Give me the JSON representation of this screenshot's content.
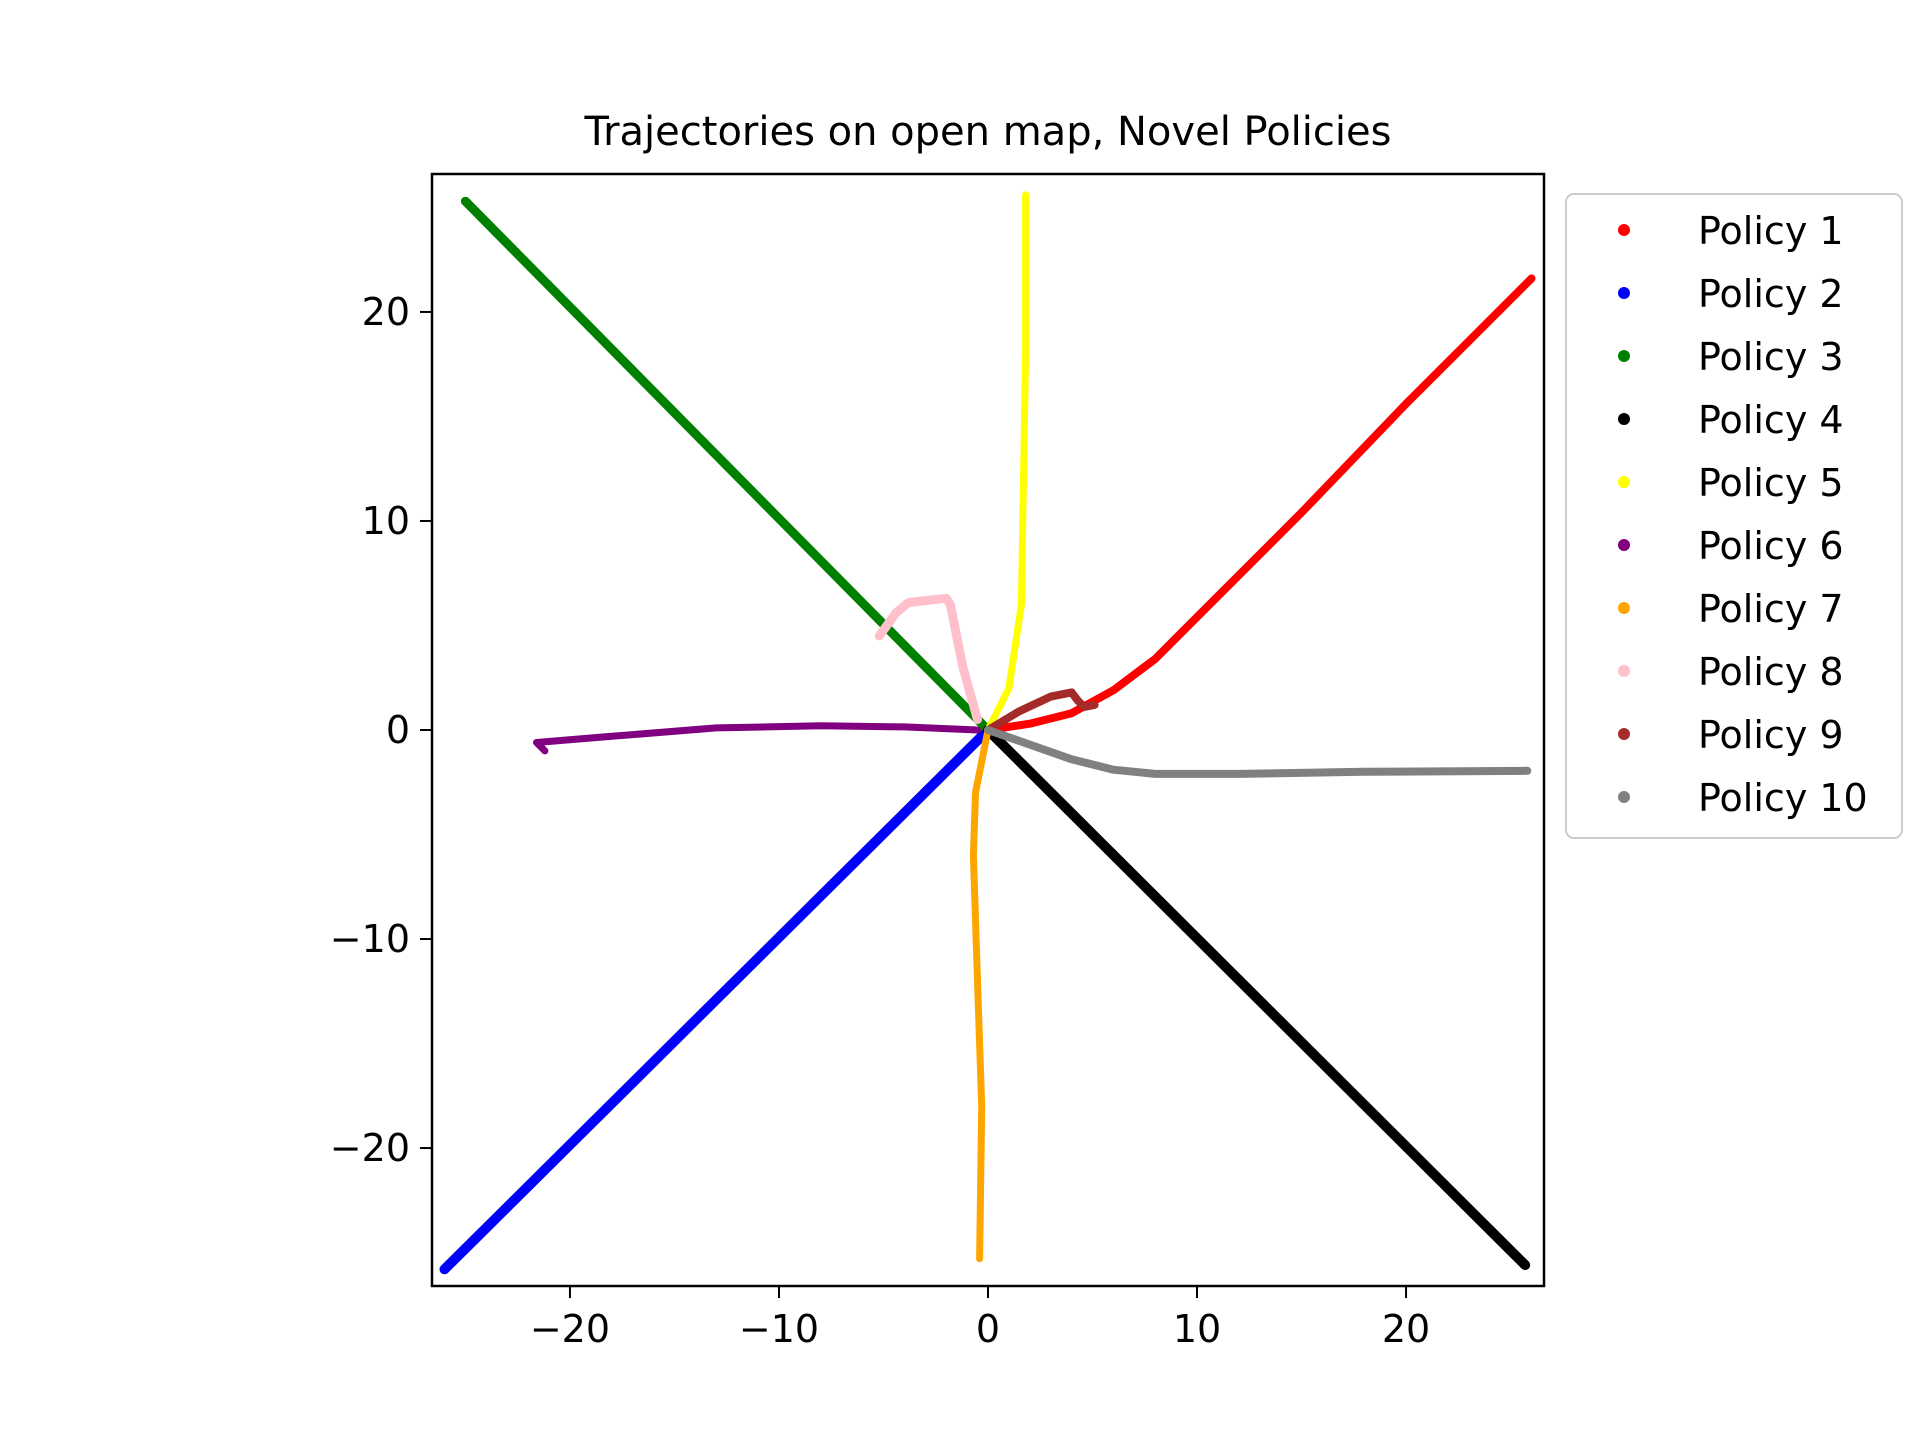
{
  "chart_data": {
    "type": "scatter",
    "title": "Trajectories on open map, Novel Policies",
    "xlabel": "",
    "ylabel": "",
    "xlim": [
      -26.6,
      26.6
    ],
    "ylim": [
      -26.6,
      26.6
    ],
    "xticks": [
      -20,
      -10,
      0,
      10,
      20
    ],
    "yticks": [
      -20,
      -10,
      0,
      10,
      20
    ],
    "xtick_labels": [
      "−20",
      "−10",
      "0",
      "10",
      "20"
    ],
    "ytick_labels": [
      "−20",
      "−10",
      "0",
      "10",
      "20"
    ],
    "grid": false,
    "legend_position": "outside-right-top",
    "series": [
      {
        "name": "Policy 1",
        "color": "#ff0000",
        "width": 8,
        "points": [
          [
            0,
            0
          ],
          [
            2,
            0.3
          ],
          [
            4,
            0.8
          ],
          [
            6,
            1.9
          ],
          [
            8,
            3.4
          ],
          [
            10,
            5.4
          ],
          [
            15,
            10.4
          ],
          [
            20,
            15.6
          ],
          [
            26,
            21.6
          ]
        ]
      },
      {
        "name": "Policy 2",
        "color": "#0000ff",
        "width": 10,
        "points": [
          [
            0,
            0
          ],
          [
            -26,
            -25.8
          ]
        ]
      },
      {
        "name": "Policy 3",
        "color": "#008000",
        "width": 9,
        "points": [
          [
            0,
            0
          ],
          [
            -25,
            25.3
          ]
        ]
      },
      {
        "name": "Policy 4",
        "color": "#000000",
        "width": 10,
        "points": [
          [
            0,
            0
          ],
          [
            25.7,
            -25.6
          ]
        ]
      },
      {
        "name": "Policy 5",
        "color": "#ffff00",
        "width": 7,
        "points": [
          [
            0,
            0
          ],
          [
            1,
            2
          ],
          [
            1.6,
            6
          ],
          [
            1.7,
            12
          ],
          [
            1.8,
            18
          ],
          [
            1.8,
            25.6
          ]
        ]
      },
      {
        "name": "Policy 6",
        "color": "#800080",
        "width": 7,
        "points": [
          [
            -0.5,
            0
          ],
          [
            -4,
            0.15
          ],
          [
            -8,
            0.2
          ],
          [
            -13,
            0.1
          ],
          [
            -18,
            -0.3
          ],
          [
            -21.6,
            -0.6
          ],
          [
            -21.2,
            -1
          ]
        ]
      },
      {
        "name": "Policy 7",
        "color": "#ffa500",
        "width": 7,
        "points": [
          [
            0,
            0
          ],
          [
            -0.6,
            -3
          ],
          [
            -0.7,
            -6
          ],
          [
            -0.5,
            -12
          ],
          [
            -0.3,
            -18
          ],
          [
            -0.4,
            -25.3
          ]
        ]
      },
      {
        "name": "Policy 8",
        "color": "#ffc0cb",
        "width": 9,
        "points": [
          [
            -0.5,
            0.5
          ],
          [
            -1.2,
            3
          ],
          [
            -1.8,
            6
          ],
          [
            -2,
            6.3
          ],
          [
            -3.8,
            6.1
          ],
          [
            -4.4,
            5.6
          ],
          [
            -5.2,
            4.5
          ]
        ]
      },
      {
        "name": "Policy 9",
        "color": "#a52a2a",
        "width": 8,
        "points": [
          [
            0,
            0
          ],
          [
            1.5,
            0.9
          ],
          [
            3,
            1.6
          ],
          [
            4,
            1.8
          ],
          [
            4.3,
            1.4
          ],
          [
            4.6,
            1.1
          ],
          [
            5.1,
            1.2
          ]
        ]
      },
      {
        "name": "Policy 10",
        "color": "#808080",
        "width": 8,
        "points": [
          [
            0,
            0
          ],
          [
            2,
            -0.7
          ],
          [
            4,
            -1.4
          ],
          [
            6,
            -1.9
          ],
          [
            8,
            -2.1
          ],
          [
            12,
            -2.1
          ],
          [
            18,
            -2
          ],
          [
            25.8,
            -1.95
          ]
        ]
      }
    ]
  }
}
